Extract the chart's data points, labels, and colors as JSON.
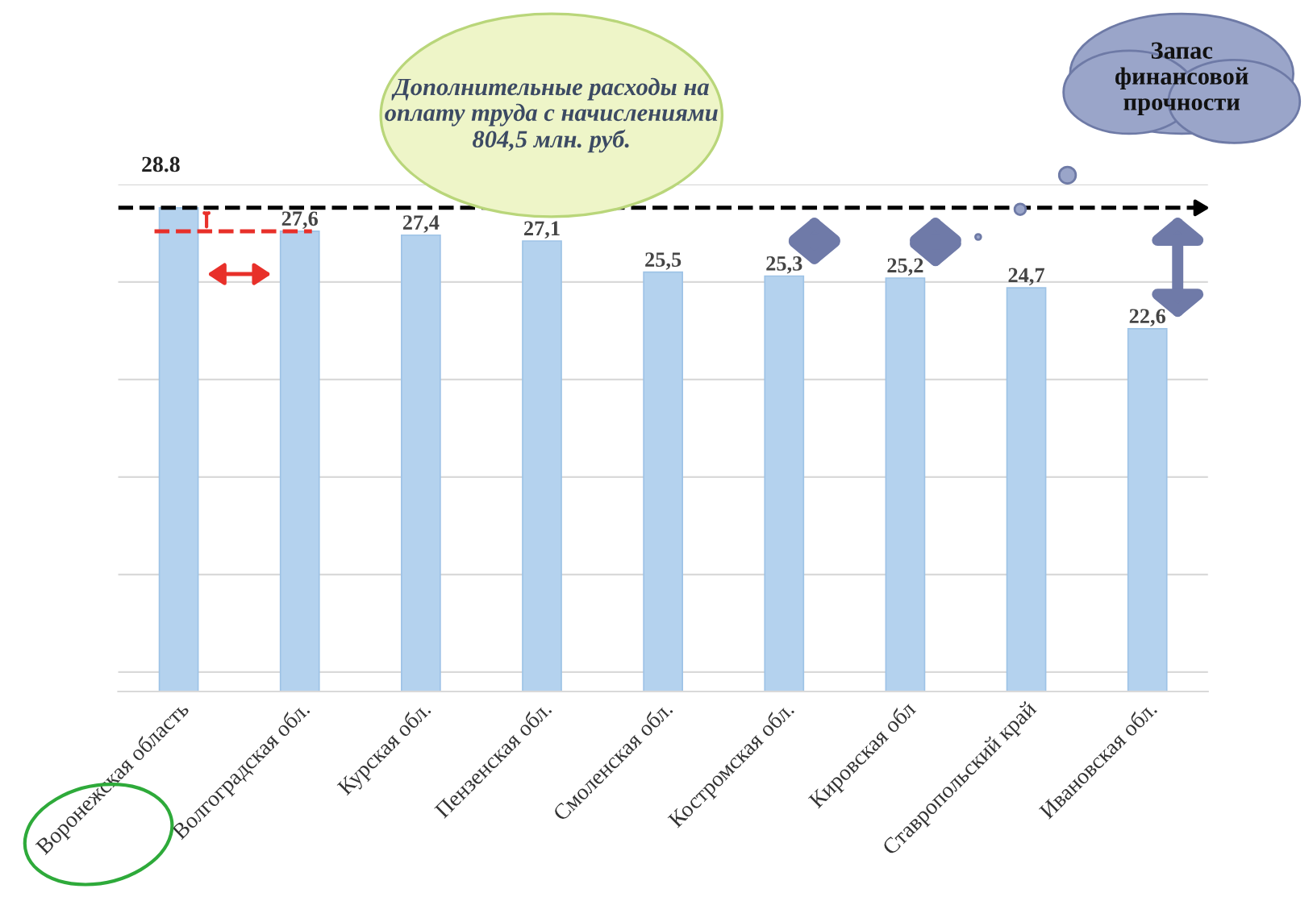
{
  "chart_data": {
    "type": "bar",
    "categories": [
      "Воронежская область",
      "Волгоградская обл.",
      "Курская обл.",
      "Пензенская обл.",
      "Смоленская обл.",
      "Костромская обл.",
      "Кировская обл",
      "Ставропольский край",
      "Ивановская обл."
    ],
    "values": [
      28.8,
      27.6,
      27.4,
      27.1,
      25.5,
      25.3,
      25.2,
      24.7,
      22.6
    ],
    "value_labels": [
      "28.8",
      "27,6",
      "27,4",
      "27,1",
      "25,5",
      "25,3",
      "25,2",
      "24,7",
      "22,6"
    ],
    "color": "#b4d2ee",
    "ylim": [
      4,
      30
    ],
    "yticks": [
      {
        "value": 5,
        "label": null
      },
      {
        "value": 10,
        "label": null
      },
      {
        "value": 15,
        "label": null
      },
      {
        "value": 20,
        "label": null
      },
      {
        "value": 25,
        "label": null
      },
      {
        "value": 30,
        "label": null
      }
    ],
    "grid": "y",
    "tick_labels": "x",
    "ref_lines": [
      {
        "axis": "y",
        "value": 28.8,
        "color": "#000000",
        "line_style": "dashed"
      },
      {
        "axis": "y",
        "value": 27.6,
        "color": "#e8302a",
        "line_style": "dashed"
      }
    ],
    "annotations": [
      "Дополнительные расходы на оплату труда с начислениями 804,5 млн. руб.",
      "Запас финансовой прочности"
    ]
  }
}
